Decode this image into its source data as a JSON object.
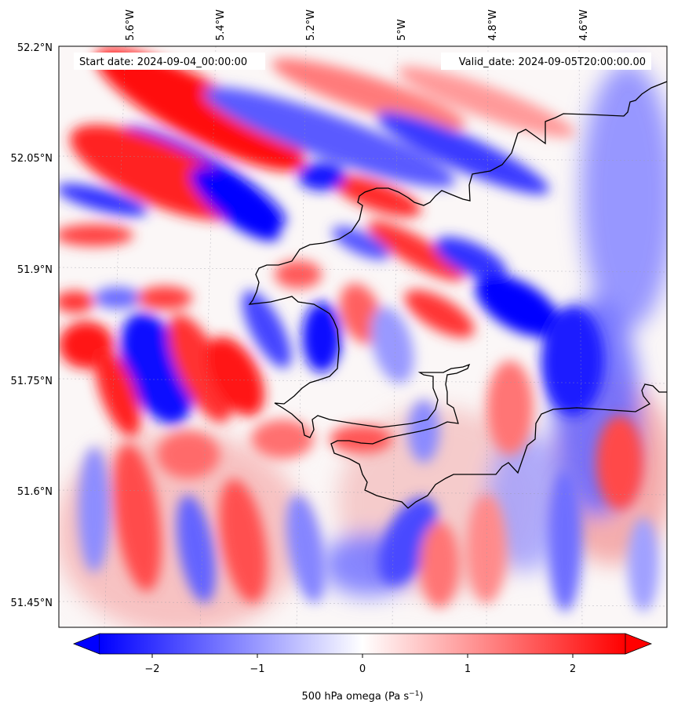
{
  "header": {
    "start_date": "Start date: 2024-09-04_00:00:00",
    "valid_date": "Valid_date: 2024-09-05T20:00:00.00"
  },
  "axes": {
    "lon_ticks": [
      "5.6°W",
      "5.4°W",
      "5.2°W",
      "5°W",
      "4.8°W",
      "4.6°W"
    ],
    "lat_ticks": [
      "52.2°N",
      "52.05°N",
      "51.9°N",
      "51.75°N",
      "51.6°N",
      "51.45°N"
    ]
  },
  "colorbar": {
    "ticks": [
      "−2",
      "−1",
      "0",
      "1",
      "2"
    ],
    "label_main": "500 hPa omega (Pa s",
    "label_sup": "−1",
    "label_close": ")",
    "min_color": "#0000ff",
    "mid_color": "#ffffff",
    "max_color": "#ff0000"
  },
  "map": {
    "variable": "500 hPa omega",
    "colormap": "bwr",
    "coastline_color": "#000000",
    "gridlines": true
  }
}
